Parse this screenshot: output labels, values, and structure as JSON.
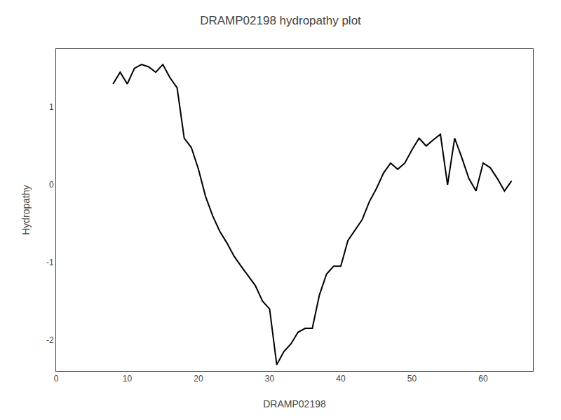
{
  "chart_data": {
    "type": "line",
    "title": "DRAMP02198 hydropathy plot",
    "xlabel": "DRAMP02198",
    "ylabel": "Hydropathy",
    "x": [
      8,
      9,
      10,
      11,
      12,
      13,
      14,
      15,
      16,
      17,
      18,
      19,
      20,
      21,
      22,
      23,
      24,
      25,
      26,
      27,
      28,
      29,
      30,
      31,
      32,
      33,
      34,
      35,
      36,
      37,
      38,
      39,
      40,
      41,
      42,
      43,
      44,
      45,
      46,
      47,
      48,
      49,
      50,
      51,
      52,
      53,
      54,
      55,
      56,
      57,
      58,
      59,
      60,
      61,
      62,
      63,
      64
    ],
    "values": [
      1.3,
      1.45,
      1.3,
      1.5,
      1.55,
      1.52,
      1.45,
      1.55,
      1.38,
      1.25,
      0.6,
      0.48,
      0.2,
      -0.15,
      -0.4,
      -0.6,
      -0.75,
      -0.92,
      -1.05,
      -1.18,
      -1.3,
      -1.5,
      -1.6,
      -2.32,
      -2.15,
      -2.05,
      -1.9,
      -1.85,
      -1.85,
      -1.42,
      -1.15,
      -1.05,
      -1.05,
      -0.72,
      -0.58,
      -0.45,
      -0.22,
      -0.05,
      0.15,
      0.28,
      0.2,
      0.28,
      0.45,
      0.6,
      0.5,
      0.58,
      0.65,
      0.0,
      0.6,
      0.35,
      0.08,
      -0.08,
      0.28,
      0.22,
      0.08,
      -0.08,
      0.05
    ],
    "color": "#000000",
    "xlim": [
      0,
      67
    ],
    "ylim": [
      -2.4,
      1.75
    ],
    "xticks": [
      0,
      10,
      20,
      30,
      40,
      50,
      60
    ],
    "yticks": [
      -2,
      -1,
      0,
      1
    ],
    "grid": false
  }
}
